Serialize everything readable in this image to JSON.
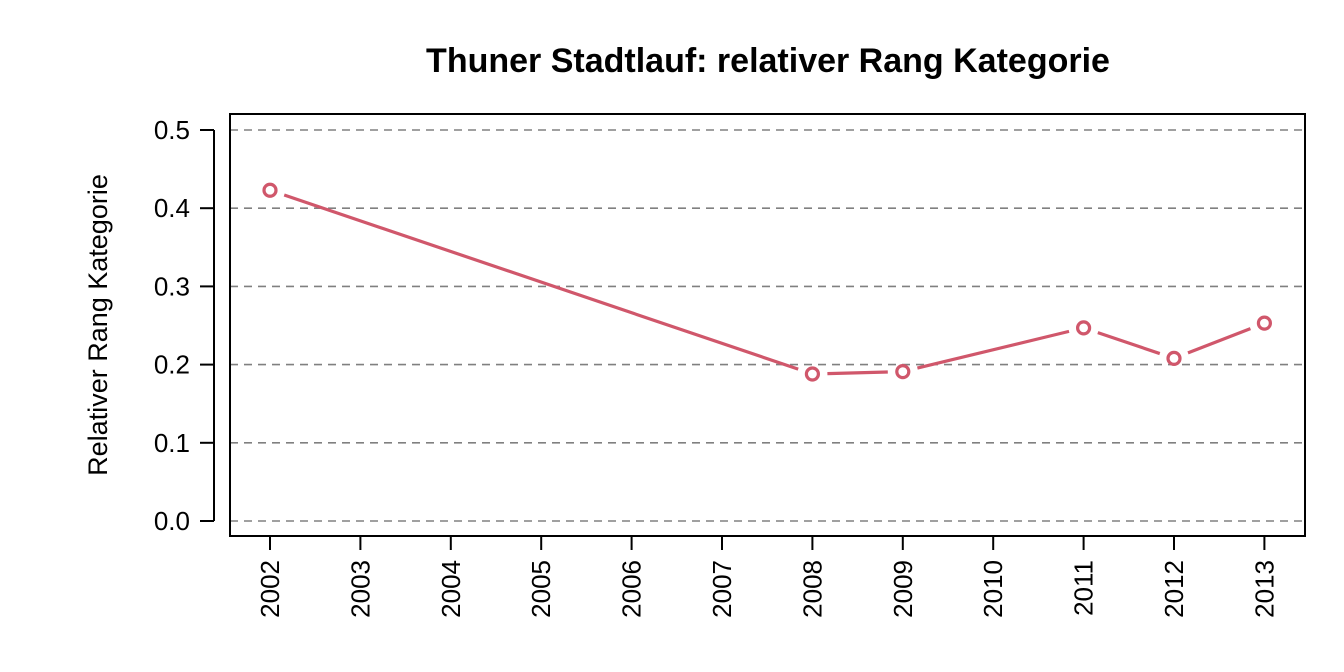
{
  "chart_data": {
    "type": "line",
    "title": "Thuner Stadtlauf: relativer Rang Kategorie",
    "xlabel": "",
    "ylabel": "Relativer Rang Kategorie",
    "x_ticks": [
      "2002",
      "2003",
      "2004",
      "2005",
      "2006",
      "2007",
      "2008",
      "2009",
      "2010",
      "2011",
      "2012",
      "2013"
    ],
    "y_ticks": [
      "0.0",
      "0.1",
      "0.2",
      "0.3",
      "0.4",
      "0.5"
    ],
    "ylim": [
      0,
      0.5
    ],
    "grid": "horizontal-dashed",
    "series": [
      {
        "color": "#d0576b",
        "points": [
          {
            "x": 2002,
            "y": 0.423
          },
          {
            "x": 2008,
            "y": 0.188
          },
          {
            "x": 2009,
            "y": 0.191
          },
          {
            "x": 2011,
            "y": 0.247
          },
          {
            "x": 2012,
            "y": 0.208
          },
          {
            "x": 2013,
            "y": 0.253
          }
        ]
      }
    ]
  }
}
